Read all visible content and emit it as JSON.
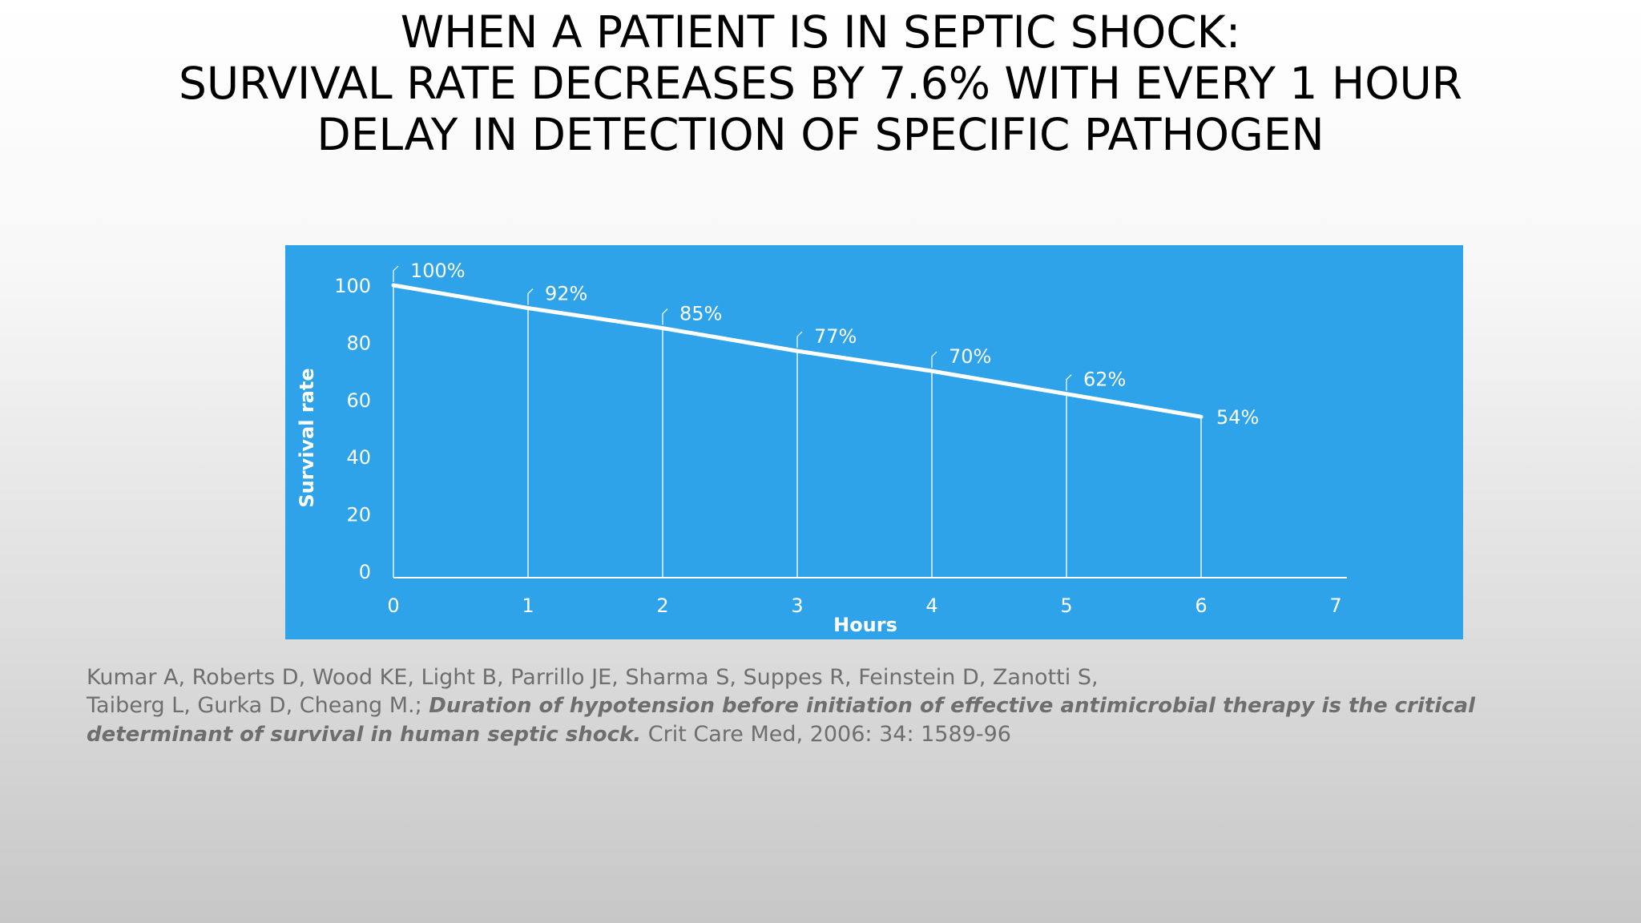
{
  "slide": {
    "title_lines": [
      "WHEN A PATIENT IS IN SEPTIC SHOCK:",
      "SURVIVAL RATE DECREASES BY 7.6% WITH EVERY 1 HOUR",
      "DELAY IN DETECTION OF SPECIFIC PATHOGEN"
    ]
  },
  "chart_data": {
    "type": "line",
    "title": "",
    "xlabel": "Hours",
    "ylabel": "Survival rate",
    "x": [
      0,
      1,
      2,
      3,
      4,
      5,
      6
    ],
    "series": [
      {
        "values": [
          100,
          92,
          85,
          77,
          70,
          62,
          54
        ],
        "labels": [
          "100%",
          "92%",
          "85%",
          "77%",
          "70%",
          "62%",
          "54%"
        ]
      }
    ],
    "xlim": [
      0,
      7
    ],
    "ylim": [
      0,
      100
    ],
    "x_ticks": [
      "0",
      "1",
      "2",
      "3",
      "4",
      "5",
      "6",
      "7"
    ],
    "y_ticks": [
      "0",
      "20",
      "40",
      "60",
      "80",
      "100"
    ],
    "grid": false,
    "drop_lines": true,
    "background_color": "#2fa3ea",
    "line_color": "#ffffff"
  },
  "citation": {
    "authors_line1": "Kumar A, Roberts D, Wood KE, Light B, Parrillo JE, Sharma S, Suppes R, Feinstein D, Zanotti S,",
    "authors_line2": "Taiberg L, Gurka D, Cheang M.; ",
    "paper_title_part1": "Duration of hypotension before initiation of effective antimicrobial therapy is the critical",
    "paper_title_part2": "determinant of survival in human septic shock.",
    "journal": " Crit Care Med, 2006: 34: 1589-96"
  }
}
